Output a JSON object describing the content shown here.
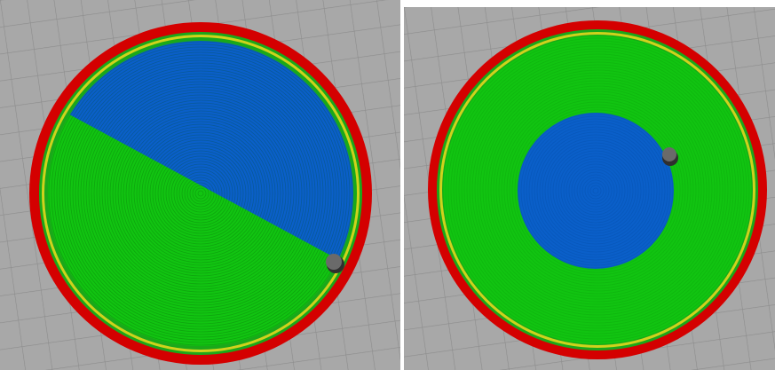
{
  "scene": {
    "colors": {
      "bed": "#a8a8a8",
      "grid_line": "#8c8c8c",
      "skirt": "#d40000",
      "skirt_dark": "#a30000",
      "perimeter_outer": "#cfd21c",
      "perimeter_inner": "#1aa81a",
      "infill": "#11c411",
      "infill_line": "#0a8f0a",
      "top_surface": "#0a5fc9",
      "top_surface_line": "#084a9c",
      "nozzle_marker": "#4a4a4a"
    },
    "views": [
      {
        "id": "left",
        "description_icon": "print-preview-half-split"
      },
      {
        "id": "right",
        "description_icon": "print-preview-concentric"
      }
    ]
  }
}
